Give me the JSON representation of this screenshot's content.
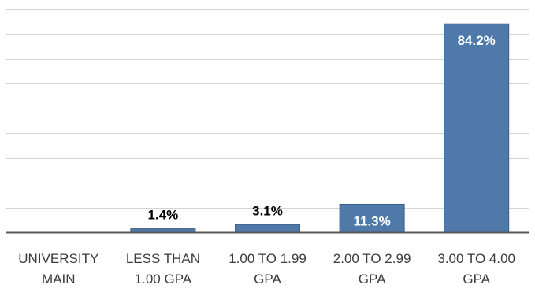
{
  "chart_data": {
    "type": "bar",
    "categories": [
      [
        "UNIVERSITY",
        "MAIN"
      ],
      [
        "LESS THAN",
        "1.00 GPA"
      ],
      [
        "1.00 TO 1.99",
        "GPA"
      ],
      [
        "2.00 TO 2.99",
        "GPA"
      ],
      [
        "3.00 TO 4.00",
        "GPA"
      ]
    ],
    "values": [
      null,
      1.4,
      3.1,
      11.3,
      84.2
    ],
    "data_labels": [
      "",
      "1.4%",
      "3.1%",
      "11.3%",
      "84.2%"
    ],
    "ylim": [
      0,
      90
    ],
    "grid": true,
    "colors": {
      "bar": "#4f79a9",
      "bar_edge": "#3a5f8a",
      "gridline": "#d4d4d4",
      "axis": "#595959",
      "label_outside": "#000000",
      "label_inside": "#ffffff"
    }
  }
}
